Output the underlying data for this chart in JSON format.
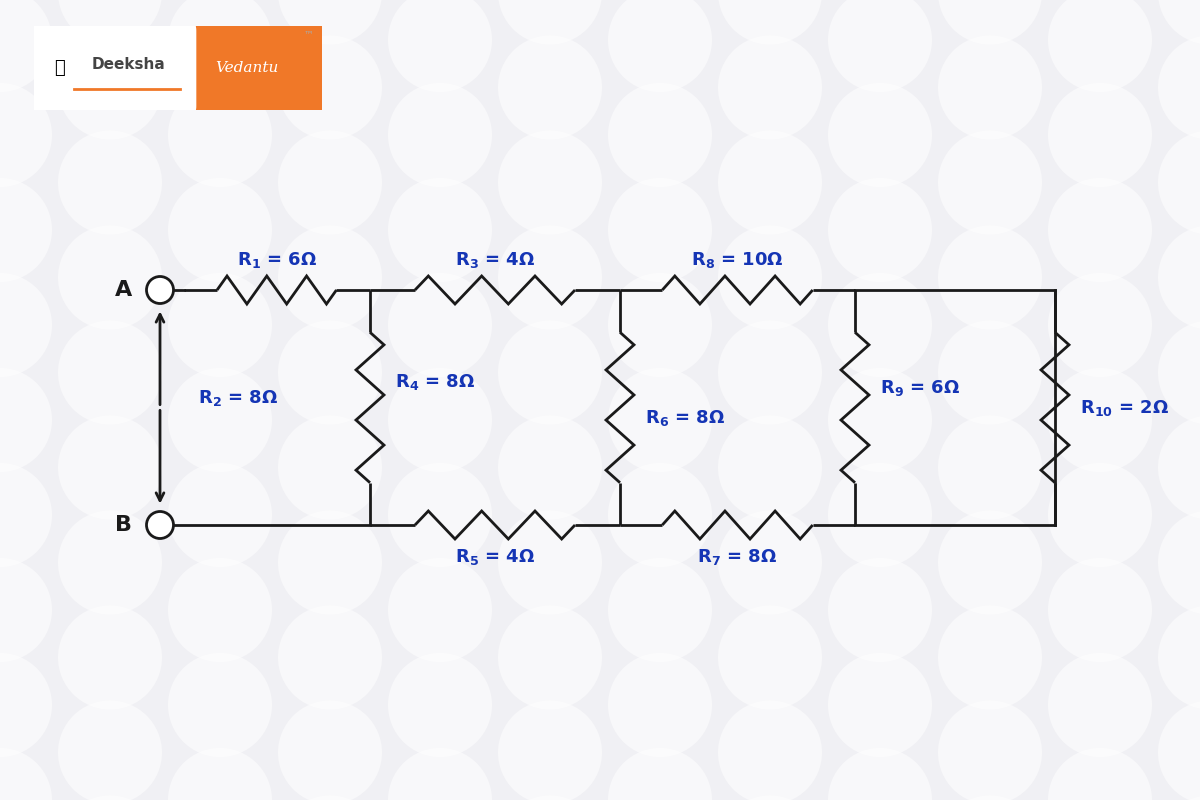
{
  "bg_color": "#f0f0f4",
  "bg_circle_color": "#ffffff",
  "bg_circle_alpha": 0.55,
  "circuit_color": "#1a1a1a",
  "label_color": "#1535b5",
  "lw": 2.0,
  "label_fs": 13,
  "xA": 1.6,
  "xN1": 3.7,
  "xN2": 6.2,
  "xN3": 8.55,
  "xN4": 10.55,
  "yTop": 5.1,
  "yBot": 2.75,
  "node_r": 0.135,
  "resistors": {
    "R1": "6Ω",
    "R2": "8Ω",
    "R3": "4Ω",
    "R4": "8Ω",
    "R5": "4Ω",
    "R6": "8Ω",
    "R7": "8Ω",
    "R8": "10Ω",
    "R9": "6Ω",
    "R10": "2Ω"
  },
  "logo_orange": "#f07828",
  "logo_orange_border": "#e06010"
}
